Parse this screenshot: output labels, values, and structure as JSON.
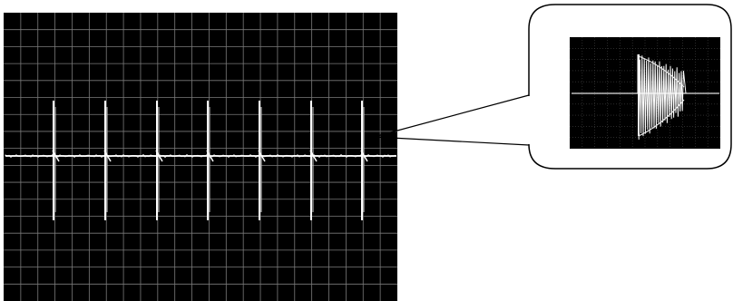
{
  "figure": {
    "colors": {
      "background": "#ffffff",
      "screen": "#000000",
      "grid": "#7a7a7a",
      "trace": "#ffffff",
      "callout_border": "#000000"
    },
    "main_scope": {
      "grid_columns": 23,
      "grid_rows": 17,
      "pulse_count": 7
    },
    "zoom_inset": {
      "grid_columns": 12,
      "grid_rows": 10
    },
    "callout": {
      "shape": "rounded-rectangle",
      "pointer_target": "last-pulse"
    }
  }
}
